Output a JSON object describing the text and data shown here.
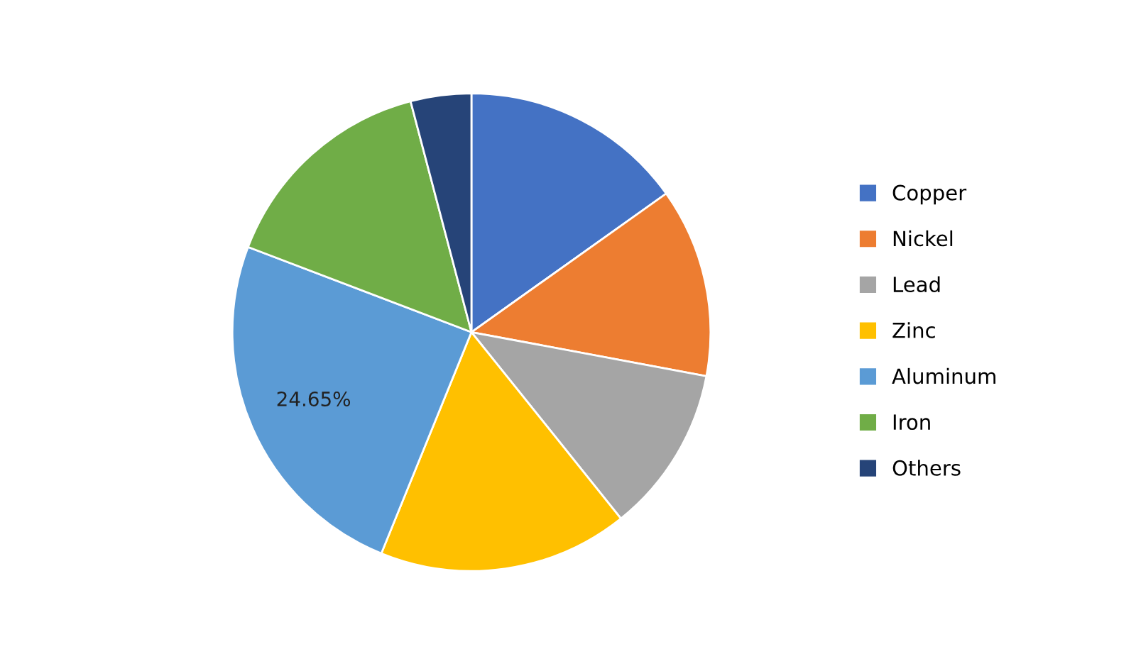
{
  "chart_data": {
    "type": "pie",
    "categories": [
      "Copper",
      "Nickel",
      "Lead",
      "Zinc",
      "Aluminum",
      "Iron",
      "Others"
    ],
    "values": [
      15.15,
      12.8,
      11.3,
      16.9,
      24.65,
      15.1,
      4.1
    ],
    "colors": [
      "#4472c4",
      "#ed7d31",
      "#a5a5a5",
      "#ffc000",
      "#5b9bd5",
      "#70ad47",
      "#264478"
    ],
    "value_labels": [
      null,
      null,
      null,
      null,
      "24.65%",
      null,
      null
    ],
    "legend": "right"
  }
}
